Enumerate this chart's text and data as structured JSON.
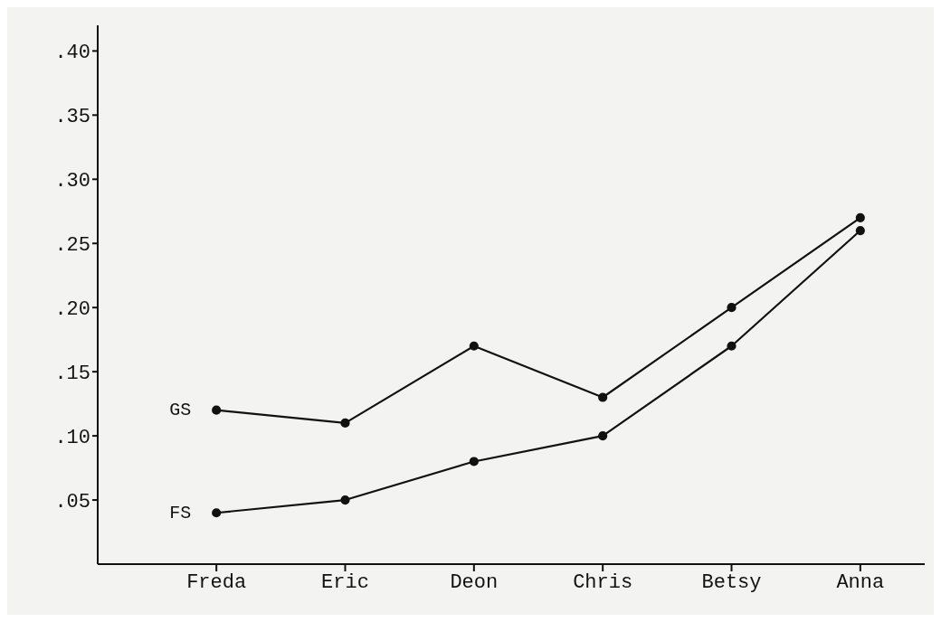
{
  "chart_data": {
    "type": "line",
    "categories": [
      "Freda",
      "Eric",
      "Deon",
      "Chris",
      "Betsy",
      "Anna"
    ],
    "series": [
      {
        "name": "GS",
        "color": "#111111",
        "values": [
          0.12,
          0.11,
          0.17,
          0.13,
          0.2,
          0.27
        ]
      },
      {
        "name": "FS",
        "color": "#111111",
        "values": [
          0.04,
          0.05,
          0.08,
          0.1,
          0.17,
          0.26
        ]
      }
    ],
    "ylim": [
      0,
      0.42
    ],
    "yticks": [
      {
        "value": 0.05,
        "label": ".05"
      },
      {
        "value": 0.1,
        "label": ".10"
      },
      {
        "value": 0.15,
        "label": ".15"
      },
      {
        "value": 0.2,
        "label": ".20"
      },
      {
        "value": 0.25,
        "label": ".25"
      },
      {
        "value": 0.3,
        "label": ".30"
      },
      {
        "value": 0.35,
        "label": ".35"
      },
      {
        "value": 0.4,
        "label": ".40"
      }
    ],
    "grid": false,
    "legend": false,
    "marker": "circle",
    "line_style": "solid"
  }
}
